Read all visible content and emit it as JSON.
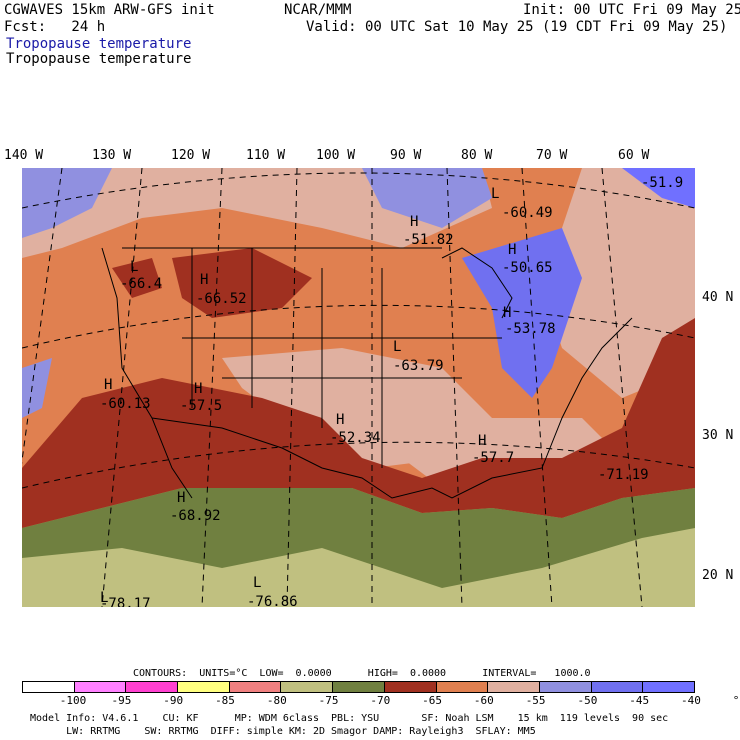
{
  "header": {
    "line1_left": "CGWAVES 15km ARW-GFS init",
    "line1_mid": "NCAR/MMM",
    "line1_right": "Init: 00 UTC Fri 09 May 25",
    "line2_left": "Fcst:   24 h",
    "line2_right": "Valid: 00 UTC Sat 10 May 25 (19 CDT Fri 09 May 25)",
    "line3": "Tropopause temperature",
    "line4": "Tropopause temperature"
  },
  "lon_labels": [
    "140 W",
    "130 W",
    "120 W",
    "110 W",
    "100 W",
    "90 W",
    "80 W",
    "70 W",
    "60 W"
  ],
  "lat_labels": [
    "40 N",
    "30 N",
    "20 N"
  ],
  "centers": [
    {
      "type": "L",
      "value": "-60.49"
    },
    {
      "type": "H",
      "value": "-51.82"
    },
    {
      "type": "H",
      "value": "-50.65"
    },
    {
      "type": "",
      "value": "-51.9"
    },
    {
      "type": "L",
      "value": "-66.4"
    },
    {
      "type": "H",
      "value": "-66.52"
    },
    {
      "type": "H",
      "value": "-53.78"
    },
    {
      "type": "L",
      "value": "-63.79"
    },
    {
      "type": "H",
      "value": "-60.13"
    },
    {
      "type": "H",
      "value": "-57.5"
    },
    {
      "type": "H",
      "value": "-52.34"
    },
    {
      "type": "H",
      "value": "-57.7"
    },
    {
      "type": "",
      "value": "-71.19"
    },
    {
      "type": "H",
      "value": "-68.92"
    },
    {
      "type": "L",
      "value": "-76.86"
    },
    {
      "type": "L",
      "value": "-78.17"
    }
  ],
  "contours_line": "CONTOURS:  UNITS=°C  LOW=  0.0000      HIGH=  0.0000      INTERVAL=   1000.0",
  "colorbar": {
    "colors": [
      "#ffffff",
      "#ff80ff",
      "#ff40d0",
      "#ffff80",
      "#f08080",
      "#c0c080",
      "#708040",
      "#a03020",
      "#e08050",
      "#e0b0a0",
      "#9090e0",
      "#7070f0",
      "#7070ff"
    ],
    "ticks": [
      "-100",
      "-95",
      "-90",
      "-85",
      "-80",
      "-75",
      "-70",
      "-65",
      "-60",
      "-55",
      "-50",
      "-45",
      "-40",
      "°C"
    ]
  },
  "footer": {
    "line1": "Model Info: V4.6.1    CU: KF      MP: WDM 6class  PBL: YSU       SF: Noah LSM    15 km  119 levels  90 sec",
    "line2": "      LW: RRTMG    SW: RRTMG  DIFF: simple KM: 2D Smagor DAMP: Rayleigh3  SFLAY: MM5"
  }
}
